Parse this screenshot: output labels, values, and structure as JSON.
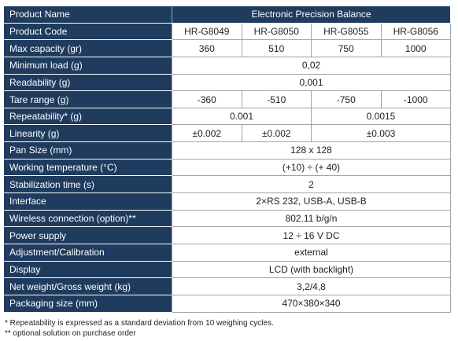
{
  "table": {
    "rows": [
      [
        "Product Name",
        "Electronic Precision Balance"
      ],
      [
        "Product Code",
        "HR-G8049",
        "HR-G8050",
        "HR-G8055",
        "HR-G8056"
      ],
      [
        "Max capacity (gr)",
        "360",
        "510",
        "750",
        "1000"
      ],
      [
        "Minimum load (g)",
        "0,02"
      ],
      [
        "Readability (g)",
        "0,001"
      ],
      [
        "Tare range (g)",
        "-360",
        "-510",
        "-750",
        "-1000"
      ],
      [
        "Repeatability* (g)",
        "0.001",
        "0.0015"
      ],
      [
        "Linearity (g)",
        "±0.002",
        "±0.002",
        "±0.003"
      ],
      [
        "Pan Size (mm)",
        "128 x 128"
      ],
      [
        "Working temperature (°C)",
        "(+10) ÷ (+ 40)"
      ],
      [
        "Stabilization time (s)",
        "2"
      ],
      [
        "Interface",
        "2×RS 232, USB-A, USB-B"
      ],
      [
        "Wireless connection (option)**",
        "802.11 b/g/n"
      ],
      [
        "Power supply",
        "12 ÷ 16 V DC"
      ],
      [
        "Adjustment/Calibration",
        "external"
      ],
      [
        "Display",
        "LCD (with backlight)"
      ],
      [
        "Net weight/Gross weight (kg)",
        "3,2/4,8"
      ],
      [
        "Packaging size (mm)",
        "470×380×340"
      ]
    ]
  },
  "footnotes": [
    "* Repeatability is expressed as a standard deviation from 10 weighing cycles.",
    "** optional solution on purchase order"
  ]
}
